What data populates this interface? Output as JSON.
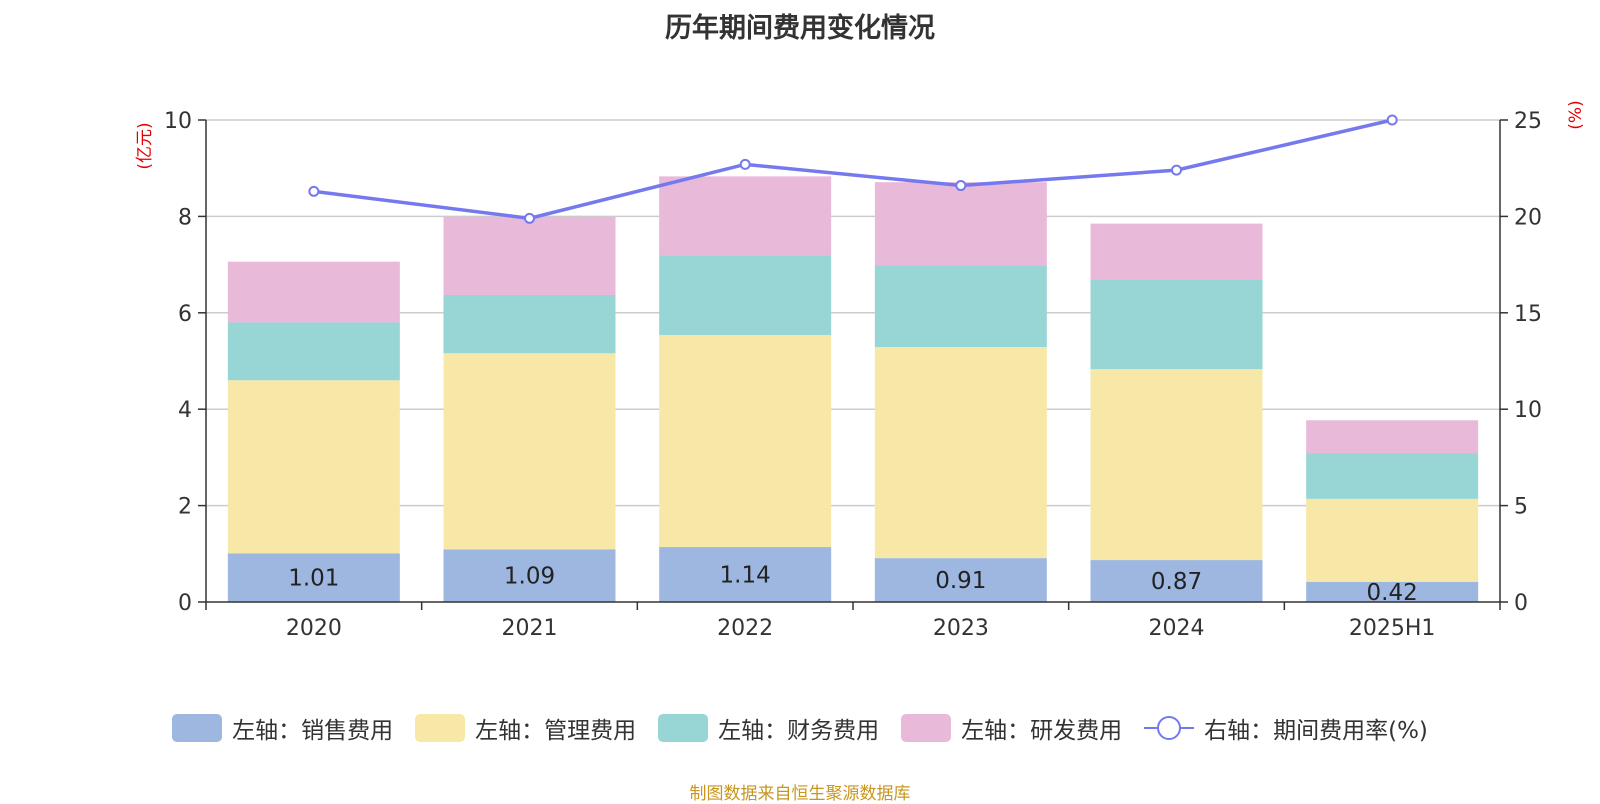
{
  "chart_data": {
    "type": "bar",
    "stacked": true,
    "title": "历年期间费用变化情况",
    "categories": [
      "2020",
      "2021",
      "2022",
      "2023",
      "2024",
      "2025H1"
    ],
    "left_axis": {
      "unit": "(亿元)",
      "ylim": [
        0,
        10
      ],
      "ticks": [
        "0",
        "2",
        "4",
        "6",
        "8",
        "10"
      ]
    },
    "right_axis": {
      "unit": "(%)",
      "ylim": [
        0,
        25
      ],
      "ticks": [
        "0",
        "5",
        "10",
        "15",
        "20",
        "25"
      ]
    },
    "series": [
      {
        "name": "左轴：销售费用",
        "axis": "left",
        "color": "#9db7e0",
        "values": [
          1.01,
          1.09,
          1.14,
          0.91,
          0.87,
          0.42
        ],
        "labels": [
          "1.01",
          "1.09",
          "1.14",
          "0.91",
          "0.87",
          "0.42"
        ]
      },
      {
        "name": "左轴：管理费用",
        "axis": "left",
        "color": "#f8e8a8",
        "values": [
          3.59,
          4.07,
          4.4,
          4.38,
          3.96,
          1.72
        ]
      },
      {
        "name": "左轴：财务费用",
        "axis": "left",
        "color": "#98d5d5",
        "values": [
          1.2,
          1.21,
          1.65,
          1.69,
          1.85,
          0.95
        ]
      },
      {
        "name": "左轴：研发费用",
        "axis": "left",
        "color": "#e8b9d9",
        "values": [
          1.26,
          1.62,
          1.64,
          1.73,
          1.17,
          0.68
        ]
      },
      {
        "name": "右轴：期间费用率(%)",
        "axis": "right",
        "type": "line",
        "color": "#7579ee",
        "values": [
          21.3,
          19.9,
          22.7,
          21.6,
          22.4,
          25.0
        ]
      }
    ],
    "grid": true,
    "legend": "bottom"
  },
  "source": "制图数据来自恒生聚源数据库"
}
